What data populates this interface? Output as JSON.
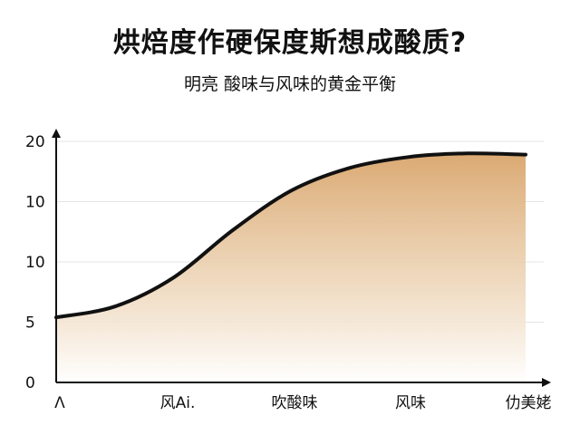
{
  "chart_data": {
    "type": "area",
    "title": "烘焙度作硬保度斯想成酸质?",
    "subtitle": "明亮 酸味与风味的黄金平衡",
    "xlabel": "",
    "ylabel": "",
    "x_ticks": [
      "Ʌ",
      "风Ai.",
      "吹酸味",
      "风味",
      "仂美姥"
    ],
    "y_ticks": [
      "20",
      "10",
      "10",
      "5",
      "0"
    ],
    "x": [
      0,
      0.5,
      1,
      1.5,
      2,
      2.5,
      3,
      3.5,
      4
    ],
    "series": [
      {
        "values": [
          5.4,
          6.3,
          8.7,
          12.6,
          15.9,
          17.8,
          18.7,
          19.0,
          18.9
        ]
      }
    ],
    "ylim": [
      0,
      20
    ],
    "xlim": [
      0,
      4
    ],
    "grid": true,
    "legend": "none",
    "colors": {
      "line": "#111111",
      "fill_top": "#d9a56b",
      "fill_bottom": "#ffffff",
      "grid": "#e4e4e4"
    }
  }
}
